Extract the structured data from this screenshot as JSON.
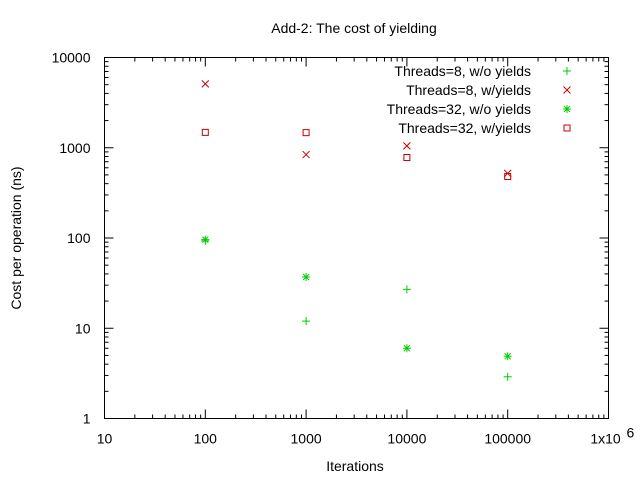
{
  "chart_data": {
    "type": "scatter",
    "title": "Add-2: The cost of yielding",
    "xlabel": "Iterations",
    "ylabel": "Cost per operation (ns)",
    "xscale": "log",
    "yscale": "log",
    "xlim": [
      10,
      1000000
    ],
    "ylim": [
      1,
      10000
    ],
    "x_tick_values": [
      10,
      100,
      1000,
      10000,
      100000,
      1000000
    ],
    "x_tick_labels": [
      "10",
      "100",
      "1000",
      "10000",
      "100000",
      "1x10"
    ],
    "x_tick_superscript": "6",
    "y_tick_values": [
      1,
      10,
      100,
      1000,
      10000
    ],
    "y_tick_labels": [
      "1",
      "10",
      "100",
      "1000",
      "10000"
    ],
    "grid": false,
    "legend_position": "top-right",
    "series": [
      {
        "name": "Threads=8, w/o yields",
        "marker": "plus",
        "color": "#00cc00",
        "points": [
          [
            100,
            93
          ],
          [
            1000,
            12
          ],
          [
            10000,
            27
          ],
          [
            100000,
            2.9
          ]
        ]
      },
      {
        "name": "Threads=8, w/yields",
        "marker": "cross",
        "color": "#cc0000",
        "points": [
          [
            100,
            5100
          ],
          [
            1000,
            840
          ],
          [
            10000,
            1050
          ],
          [
            100000,
            520
          ]
        ]
      },
      {
        "name": "Threads=32, w/o yields",
        "marker": "star",
        "color": "#00cc00",
        "points": [
          [
            100,
            96
          ],
          [
            1000,
            37
          ],
          [
            10000,
            6
          ],
          [
            100000,
            4.9
          ]
        ]
      },
      {
        "name": "Threads=32, w/yields",
        "marker": "square",
        "color": "#cc0000",
        "points": [
          [
            100,
            1480
          ],
          [
            1000,
            1470
          ],
          [
            10000,
            780
          ],
          [
            100000,
            480
          ]
        ]
      }
    ]
  }
}
